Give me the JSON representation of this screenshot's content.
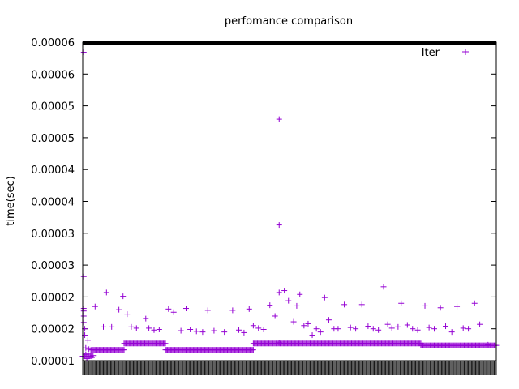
{
  "chart_data": {
    "type": "scatter",
    "title": "perfomance comparison",
    "xlabel": "",
    "ylabel": "time(sec)",
    "ylim": [
      1e-05,
      6e-05
    ],
    "xlim": [
      0,
      400
    ],
    "yticks": [
      1e-05,
      1.5e-05,
      2e-05,
      2.5e-05,
      3e-05,
      3.5e-05,
      4e-05,
      4.5e-05,
      5e-05,
      5.5e-05,
      6e-05
    ],
    "ytick_labels": [
      "0.00001",
      "0.00002",
      "0.00002",
      "0.00003",
      "0.00003",
      "0.00004",
      "0.00004",
      "0.00005",
      "0.00005",
      "0.00006",
      "0.00006"
    ],
    "grid": false,
    "legend": {
      "position": "top-right",
      "entries": [
        "Iter"
      ]
    },
    "series": [
      {
        "name": "Iter",
        "color": "#9400d3",
        "marker": "plus",
        "base_segments": [
          {
            "x_start": 0,
            "x_end": 8,
            "y": 1.07e-05
          },
          {
            "x_start": 8,
            "x_end": 40,
            "y": 1.17e-05
          },
          {
            "x_start": 40,
            "x_end": 80,
            "y": 1.27e-05
          },
          {
            "x_start": 80,
            "x_end": 165,
            "y": 1.17e-05
          },
          {
            "x_start": 165,
            "x_end": 327,
            "y": 1.27e-05
          },
          {
            "x_start": 327,
            "x_end": 400,
            "y": 1.24e-05
          }
        ],
        "points": [
          [
            1,
            5.84e-05
          ],
          [
            1,
            2.32e-05
          ],
          [
            1,
            1.82e-05
          ],
          [
            1,
            1.78e-05
          ],
          [
            1,
            1.7e-05
          ],
          [
            1,
            1.6e-05
          ],
          [
            2,
            1.5e-05
          ],
          [
            2,
            1.4e-05
          ],
          [
            3,
            1.2e-05
          ],
          [
            3,
            1.1e-05
          ],
          [
            4,
            1.03e-05
          ],
          [
            5,
            1.32e-05
          ],
          [
            6,
            1.18e-05
          ],
          [
            8,
            1.12e-05
          ],
          [
            9,
            1.05e-05
          ],
          [
            10,
            1.08e-05
          ],
          [
            12,
            1.85e-05
          ],
          [
            20,
            1.53e-05
          ],
          [
            23,
            2.07e-05
          ],
          [
            28,
            1.53e-05
          ],
          [
            35,
            1.8e-05
          ],
          [
            39,
            2.01e-05
          ],
          [
            43,
            1.73e-05
          ],
          [
            47,
            1.53e-05
          ],
          [
            52,
            1.51e-05
          ],
          [
            61,
            1.66e-05
          ],
          [
            64,
            1.51e-05
          ],
          [
            69,
            1.48e-05
          ],
          [
            74,
            1.49e-05
          ],
          [
            83,
            1.81e-05
          ],
          [
            88,
            1.76e-05
          ],
          [
            95,
            1.47e-05
          ],
          [
            100,
            1.82e-05
          ],
          [
            104,
            1.49e-05
          ],
          [
            110,
            1.46e-05
          ],
          [
            116,
            1.45e-05
          ],
          [
            121,
            1.79e-05
          ],
          [
            127,
            1.47e-05
          ],
          [
            137,
            1.45e-05
          ],
          [
            145,
            1.79e-05
          ],
          [
            151,
            1.48e-05
          ],
          [
            156,
            1.44e-05
          ],
          [
            161,
            1.81e-05
          ],
          [
            165,
            1.55e-05
          ],
          [
            170,
            1.51e-05
          ],
          [
            175,
            1.49e-05
          ],
          [
            181,
            1.87e-05
          ],
          [
            186,
            1.7e-05
          ],
          [
            190,
            4.79e-05
          ],
          [
            190,
            3.13e-05
          ],
          [
            190,
            2.07e-05
          ],
          [
            190,
            1.28e-05
          ],
          [
            195,
            2.1e-05
          ],
          [
            199,
            1.94e-05
          ],
          [
            204,
            1.61e-05
          ],
          [
            207,
            1.86e-05
          ],
          [
            210,
            2.04e-05
          ],
          [
            214,
            1.55e-05
          ],
          [
            218,
            1.58e-05
          ],
          [
            222,
            1.4e-05
          ],
          [
            226,
            1.5e-05
          ],
          [
            230,
            1.45e-05
          ],
          [
            234,
            1.99e-05
          ],
          [
            238,
            1.64e-05
          ],
          [
            243,
            1.5e-05
          ],
          [
            247,
            1.5e-05
          ],
          [
            253,
            1.88e-05
          ],
          [
            259,
            1.52e-05
          ],
          [
            264,
            1.5e-05
          ],
          [
            270,
            1.88e-05
          ],
          [
            276,
            1.54e-05
          ],
          [
            281,
            1.5e-05
          ],
          [
            286,
            1.48e-05
          ],
          [
            291,
            2.16e-05
          ],
          [
            295,
            1.57e-05
          ],
          [
            299,
            1.51e-05
          ],
          [
            305,
            1.53e-05
          ],
          [
            308,
            1.9e-05
          ],
          [
            314,
            1.56e-05
          ],
          [
            319,
            1.5e-05
          ],
          [
            324,
            1.48e-05
          ],
          [
            331,
            1.86e-05
          ],
          [
            335,
            1.52e-05
          ],
          [
            340,
            1.5e-05
          ],
          [
            346,
            1.83e-05
          ],
          [
            351,
            1.54e-05
          ],
          [
            357,
            1.45e-05
          ],
          [
            362,
            1.85e-05
          ],
          [
            368,
            1.51e-05
          ],
          [
            373,
            1.5e-05
          ],
          [
            379,
            1.9e-05
          ],
          [
            384,
            1.57e-05
          ],
          [
            392,
            1.25e-05
          ]
        ]
      }
    ]
  }
}
